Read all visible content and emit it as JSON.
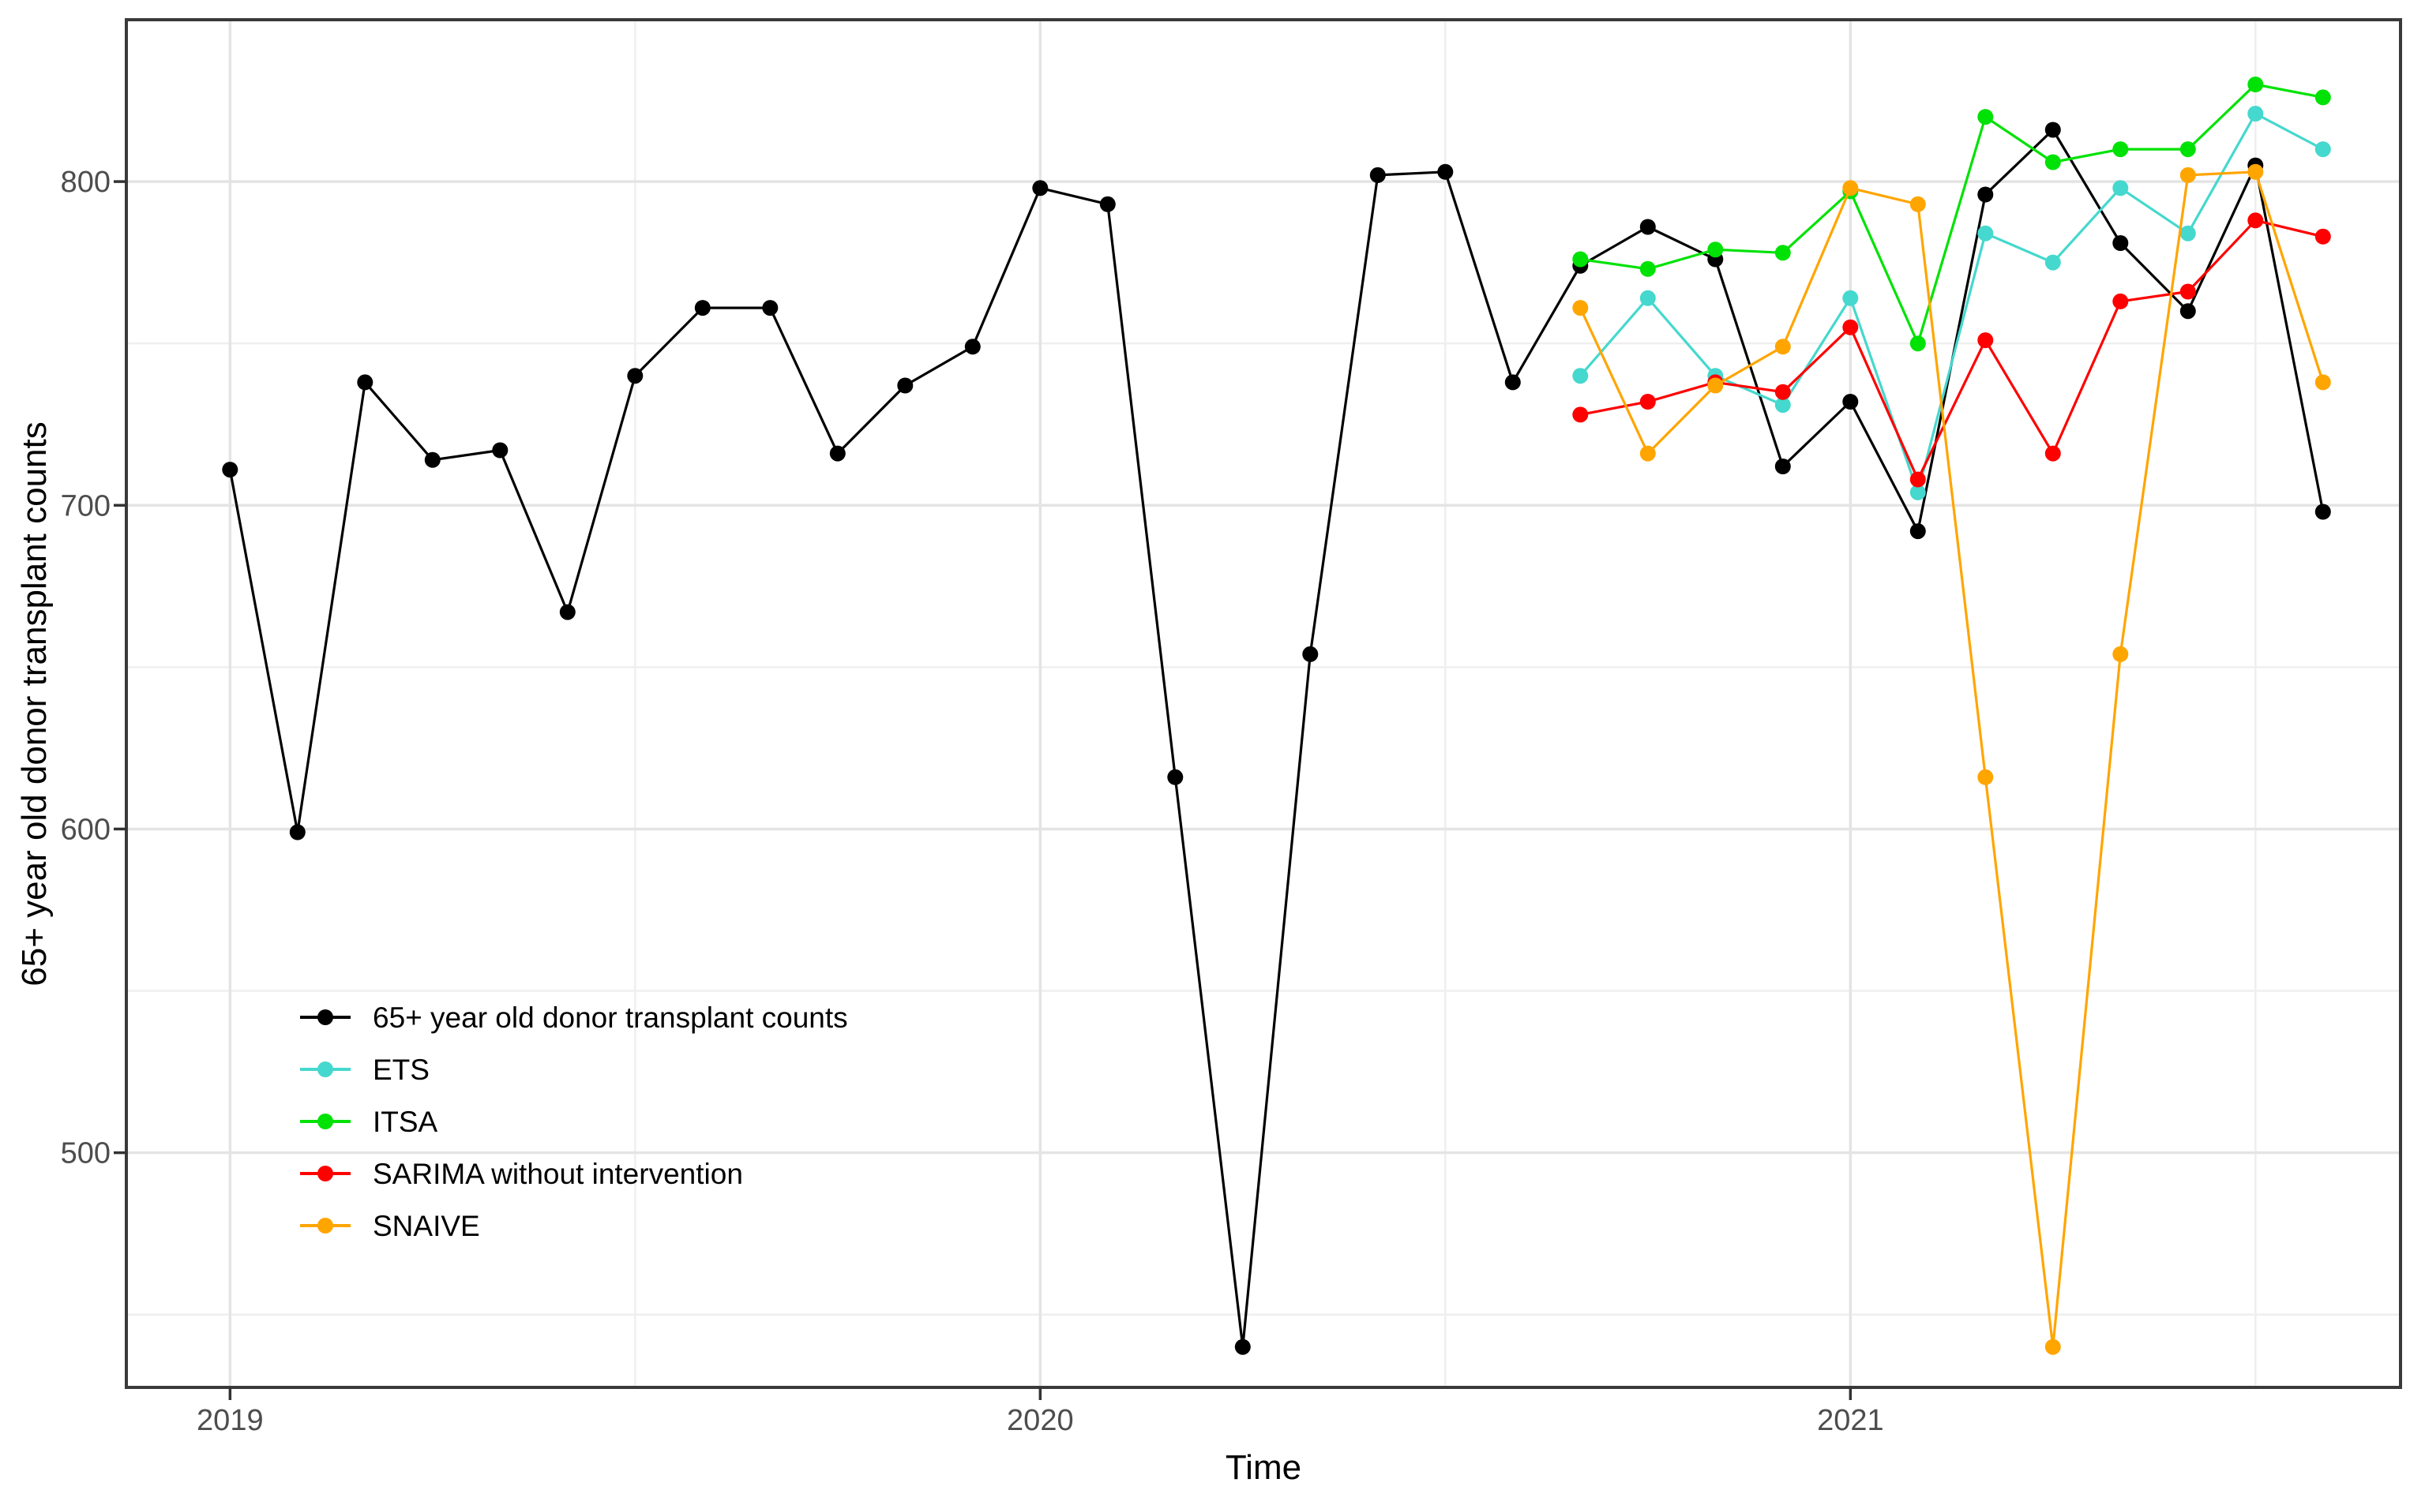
{
  "chart_data": {
    "type": "line",
    "title": "",
    "xlabel": "Time",
    "ylabel": "65+ year old donor transplant counts",
    "x_ticks": [
      2019,
      2020,
      2021
    ],
    "x_minor_ticks": [
      2019.5,
      2020.5,
      2021.5
    ],
    "y_ticks": [
      500,
      600,
      700,
      800
    ],
    "y_minor_ticks": [
      450,
      550,
      650,
      750
    ],
    "xlim": [
      2018.872,
      2021.679
    ],
    "ylim": [
      427.5,
      850
    ],
    "grid": {
      "major": true,
      "minor": true
    },
    "legend_position": "inside bottom-left",
    "frequency": "monthly",
    "series": [
      {
        "name": "65+ year old donor transplant counts",
        "color": "#000000",
        "start_year": 2019,
        "start_month": 1,
        "values": [
          711,
          599,
          738,
          714,
          717,
          667,
          740,
          761,
          761,
          716,
          737,
          749,
          798,
          793,
          616,
          440,
          654,
          802,
          803,
          738,
          774,
          786,
          776,
          712,
          732,
          692,
          796,
          816,
          781,
          760,
          805,
          698
        ]
      },
      {
        "name": "ETS",
        "color": "#45d8ce",
        "start_year": 2020,
        "start_month": 9,
        "values": [
          740,
          764,
          740,
          731,
          764,
          704,
          784,
          775,
          798,
          784,
          821,
          810
        ]
      },
      {
        "name": "ITSA",
        "color": "#00e205",
        "start_year": 2020,
        "start_month": 9,
        "values": [
          776,
          773,
          779,
          778,
          797,
          750,
          820,
          806,
          810,
          810,
          830,
          826
        ]
      },
      {
        "name": "SARIMA without intervention",
        "color": "#ff0000",
        "start_year": 2020,
        "start_month": 9,
        "values": [
          728,
          732,
          738,
          735,
          755,
          708,
          751,
          716,
          763,
          766,
          788,
          783
        ]
      },
      {
        "name": "SNAIVE",
        "color": "#ffa500",
        "start_year": 2020,
        "start_month": 9,
        "values": [
          761,
          716,
          737,
          749,
          798,
          793,
          616,
          440,
          654,
          802,
          803,
          738
        ]
      }
    ]
  },
  "legend": {
    "entries": [
      "65+ year old donor transplant counts",
      "ETS",
      "ITSA",
      "SARIMA without intervention",
      "SNAIVE"
    ]
  },
  "style_colors": {
    "background": "#ffffff",
    "gridline_major": "#e4e4e4",
    "gridline_minor": "#efefef",
    "panel_border": "#3a3a3a",
    "tick_mark": "#333333",
    "tick_text": "#4d4d4d"
  }
}
